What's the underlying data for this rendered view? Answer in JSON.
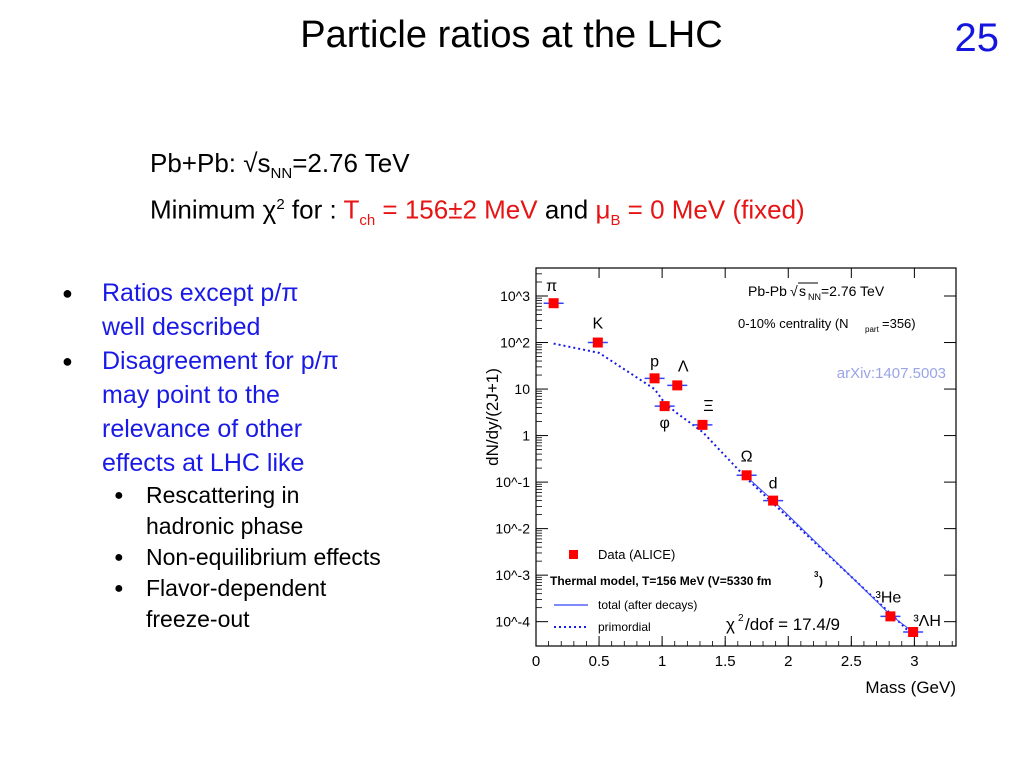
{
  "slide": {
    "title": "Particle ratios at the LHC",
    "number": "25"
  },
  "subtitle": {
    "line1_prefix": "Pb+Pb: √s",
    "line1_sub": "NN",
    "line1_suffix": "=2.76 TeV",
    "line2_prefix": "Minimum χ",
    "line2_sup": "2",
    "line2_for": " for : ",
    "line2_t": "T",
    "line2_t_sub": "ch",
    "line2_t_val": " = 156±2 MeV",
    "line2_and": " and ",
    "line2_mu": "μ",
    "line2_mu_sub": "B",
    "line2_mu_val": " = 0 MeV (fixed)",
    "red_color": "#e61414"
  },
  "bullets": {
    "item1_line1": "Ratios except p/π",
    "item1_line2": "well described",
    "item2_lines": [
      "Disagreement for p/π",
      "may point to the",
      "relevance of other",
      "effects at LHC like"
    ],
    "sub_items": [
      {
        "line1": "Rescattering in",
        "line2": "hadronic phase"
      },
      {
        "line1": "Non-equilibrium effects",
        "line2": ""
      },
      {
        "line1": "Flavor-dependent",
        "line2": "freeze-out"
      }
    ],
    "blue_color": "#1a1ae6"
  },
  "chart_data": {
    "type": "scatter",
    "ylabel": "dN/dy/(2J+1)",
    "xlabel": "Mass (GeV)",
    "y_scale": "log",
    "xlim": [
      0,
      3.33
    ],
    "ylim": [
      3e-05,
      4000
    ],
    "x_ticks": [
      "0",
      "0.5",
      "1",
      "1.5",
      "2",
      "2.5",
      "3"
    ],
    "y_ticks": [
      "10^-4",
      "10^-3",
      "10^-2",
      "10^-1",
      "1",
      "10",
      "10^2",
      "10^3"
    ],
    "header_line1_pre": "Pb-Pb ",
    "header_line1_root": "s",
    "header_line1_sub": "NN",
    "header_line1_post": "=2.76 TeV",
    "header_line2_pre": "0-10% centrality (N",
    "header_line2_sub": "part",
    "header_line2_post": "=356)",
    "arxiv": "arXiv:1407.5003",
    "chi2_pre": "χ",
    "chi2_sup": "2",
    "chi2_post": "/dof = 17.4/9",
    "legend": {
      "data": "Data (ALICE)",
      "model": "Thermal model, T=156 MeV (V=5330 fm",
      "model_sup": "3",
      "model_close": ")",
      "total": "total (after decays)",
      "primordial": "primordial"
    },
    "series": [
      {
        "name": "Data (ALICE)",
        "color": "#ff0000",
        "points": [
          {
            "label": "π",
            "x": 0.14,
            "y": 700
          },
          {
            "label": "K",
            "x": 0.49,
            "y": 100
          },
          {
            "label": "p",
            "x": 0.94,
            "y": 17
          },
          {
            "label": "Λ",
            "x": 1.12,
            "y": 12
          },
          {
            "label": "φ",
            "x": 1.02,
            "y": 4.3
          },
          {
            "label": "Ξ",
            "x": 1.32,
            "y": 1.7
          },
          {
            "label": "Ω",
            "x": 1.67,
            "y": 0.14
          },
          {
            "label": "d",
            "x": 1.88,
            "y": 0.04
          },
          {
            "label": "³He",
            "x": 2.81,
            "y": 0.00013
          },
          {
            "label": "³ΛH",
            "x": 2.99,
            "y": 6e-05
          }
        ]
      },
      {
        "name": "primordial",
        "color": "#1a1ae6",
        "points": [
          {
            "x": 0.14,
            "y": 95
          },
          {
            "x": 0.5,
            "y": 60
          },
          {
            "x": 0.94,
            "y": 10
          },
          {
            "x": 1.02,
            "y": 5
          },
          {
            "x": 1.12,
            "y": 3
          },
          {
            "x": 1.32,
            "y": 1.2
          },
          {
            "x": 1.67,
            "y": 0.12
          },
          {
            "x": 1.88,
            "y": 0.035
          },
          {
            "x": 2.81,
            "y": 0.00015
          },
          {
            "x": 2.99,
            "y": 5e-05
          }
        ]
      },
      {
        "name": "total (after decays)",
        "color": "#3344ff",
        "points": [
          {
            "x": 1.67,
            "y": 0.13
          },
          {
            "x": 1.88,
            "y": 0.04
          },
          {
            "x": 2.81,
            "y": 0.00014
          },
          {
            "x": 2.99,
            "y": 6e-05
          }
        ]
      }
    ]
  }
}
